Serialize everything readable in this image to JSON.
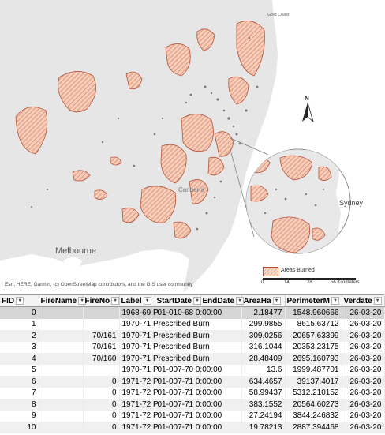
{
  "map": {
    "attribution": "Esri, HERE, Garmin, (c) OpenStreetMap contributors, and the GIS user community",
    "cities": {
      "melbourne": "Melbourne",
      "gold_coast": "Gold Coast",
      "sydney": "Sydney",
      "canberra": "Canberra"
    },
    "north_label": "N",
    "legend_label": "Areas Burned",
    "scale_labels": [
      "0",
      "14",
      "28",
      "56 Kilometers"
    ],
    "colors": {
      "land": "#e6e6e6",
      "sea": "#ffffff",
      "burn_fill": "#f2b8a0",
      "burn_stroke": "#b5533a"
    }
  },
  "table": {
    "columns": [
      "FID",
      "FireName",
      "FireNo",
      "Label",
      "StartDate",
      "EndDate",
      "AreaHa",
      "PerimeterM",
      "Verdate"
    ],
    "rows": [
      [
        "0",
        "",
        "",
        "1968-69 P",
        "01-010-68 0:00:00",
        "",
        "2.18477",
        "1548.960666",
        "26-03-20"
      ],
      [
        "1",
        "",
        "",
        "1970-71 Prescribed Burn",
        "",
        "",
        "299.9855",
        "8615.63712",
        "26-03-20"
      ],
      [
        "2",
        "",
        "70/161",
        "1970-71 Prescribed Burn",
        "",
        "",
        "309.0256",
        "20657.63399",
        "26-03-20"
      ],
      [
        "3",
        "",
        "70/161",
        "1970-71 Prescribed Burn",
        "",
        "",
        "316.1044",
        "20353.23175",
        "26-03-20"
      ],
      [
        "4",
        "",
        "70/160",
        "1970-71 Prescribed Burn",
        "",
        "",
        "28.48409",
        "2695.160793",
        "26-03-20"
      ],
      [
        "5",
        "",
        "",
        "1970-71 P",
        "01-007-70 0:00:00",
        "",
        "13.6",
        "1999.487701",
        "26-03-20"
      ],
      [
        "6",
        "",
        "0",
        "1971-72 P",
        "01-007-71 0:00:00",
        "",
        "634.4657",
        "39137.4017",
        "26-03-20"
      ],
      [
        "7",
        "",
        "0",
        "1971-72 P",
        "01-007-71 0:00:00",
        "",
        "58.99437",
        "5312.210152",
        "26-03-20"
      ],
      [
        "8",
        "",
        "0",
        "1971-72 P",
        "01-007-71 0:00:00",
        "",
        "383.1552",
        "20564.60273",
        "26-03-20"
      ],
      [
        "9",
        "",
        "0",
        "1971-72 P",
        "01-007-71 0:00:00",
        "",
        "27.24194",
        "3844.246832",
        "26-03-20"
      ],
      [
        "10",
        "",
        "0",
        "1971-72 P",
        "01-007-71 0:00:00",
        "",
        "19.78213",
        "2887.394468",
        "26-03-20"
      ]
    ]
  }
}
